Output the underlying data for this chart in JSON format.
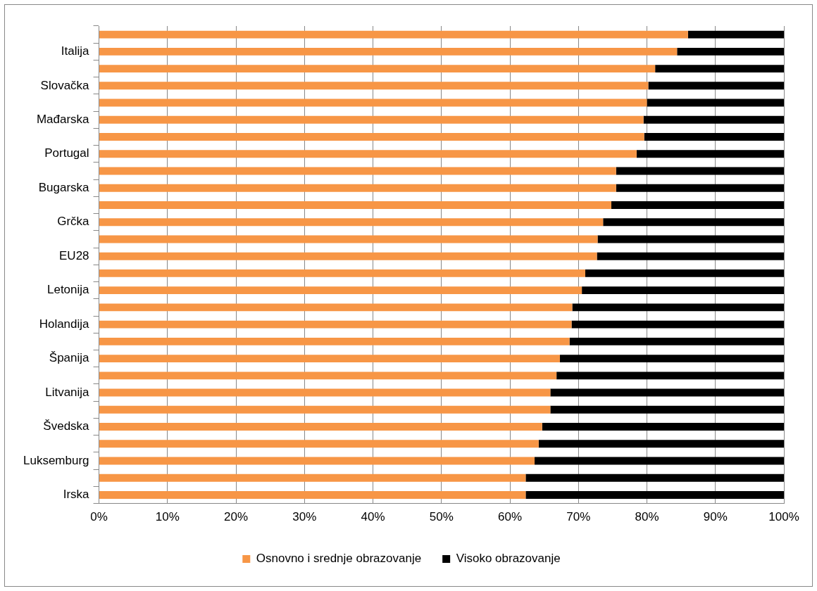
{
  "chart_data": {
    "type": "bar",
    "orientation": "horizontal",
    "stacked": true,
    "categories": [
      null,
      "Italija",
      null,
      "Slovačka",
      null,
      "Mađarska",
      null,
      "Portugal",
      null,
      "Bugarska",
      null,
      "Grčka",
      null,
      "EU28",
      null,
      "Letonija",
      null,
      "Holandija",
      null,
      "Španija",
      null,
      "Litvanija",
      null,
      "Švedska",
      null,
      "Luksemburg",
      null,
      "Irska"
    ],
    "series": [
      {
        "name": "Osnovno i srednje obrazovanje",
        "color": "#f79646",
        "values": [
          86.0,
          84.4,
          81.2,
          80.2,
          80.0,
          79.5,
          79.6,
          78.5,
          75.5,
          75.5,
          74.8,
          73.6,
          72.8,
          72.7,
          71.0,
          70.5,
          69.1,
          69.0,
          68.7,
          67.3,
          66.8,
          65.9,
          65.9,
          64.7,
          64.2,
          63.6,
          62.3,
          62.3
        ]
      },
      {
        "name": "Visoko obrazovanje",
        "color": "#000000",
        "values": [
          14.0,
          15.6,
          18.8,
          19.8,
          20.0,
          20.5,
          20.4,
          21.5,
          24.5,
          24.5,
          25.2,
          26.4,
          27.2,
          27.3,
          29.0,
          29.5,
          30.9,
          31.0,
          31.3,
          32.7,
          33.2,
          34.1,
          34.1,
          35.3,
          35.8,
          36.4,
          37.7,
          37.7
        ]
      }
    ],
    "xlim": [
      0,
      100
    ],
    "xticks": [
      {
        "value": 0,
        "label": "0%"
      },
      {
        "value": 10,
        "label": "10%"
      },
      {
        "value": 20,
        "label": "20%"
      },
      {
        "value": 30,
        "label": "30%"
      },
      {
        "value": 40,
        "label": "40%"
      },
      {
        "value": 50,
        "label": "50%"
      },
      {
        "value": 60,
        "label": "60%"
      },
      {
        "value": 70,
        "label": "70%"
      },
      {
        "value": 80,
        "label": "80%"
      },
      {
        "value": 90,
        "label": "90%"
      },
      {
        "value": 100,
        "label": "100%"
      }
    ],
    "grid": "x",
    "legend": "bottom"
  }
}
